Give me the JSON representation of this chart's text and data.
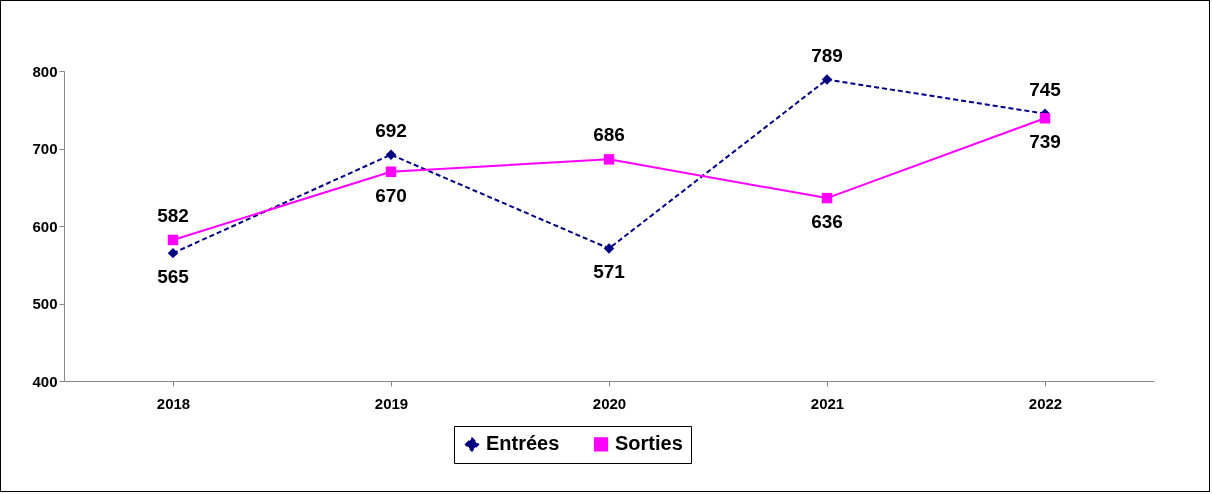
{
  "chart_data": {
    "type": "line",
    "categories": [
      "2018",
      "2019",
      "2020",
      "2021",
      "2022"
    ],
    "series": [
      {
        "name": "Entrées",
        "color": "#000080",
        "values": [
          565,
          692,
          571,
          789,
          745
        ],
        "marker": "diamond",
        "line_style": "dashed"
      },
      {
        "name": "Sorties",
        "color": "#ff00ff",
        "values": [
          582,
          670,
          686,
          636,
          739
        ],
        "marker": "square",
        "line_style": "solid"
      }
    ],
    "ylim": [
      400,
      800
    ],
    "yticks": [
      400,
      500,
      600,
      700,
      800
    ],
    "grid": false,
    "legend": "bottom",
    "data_labels": true
  }
}
